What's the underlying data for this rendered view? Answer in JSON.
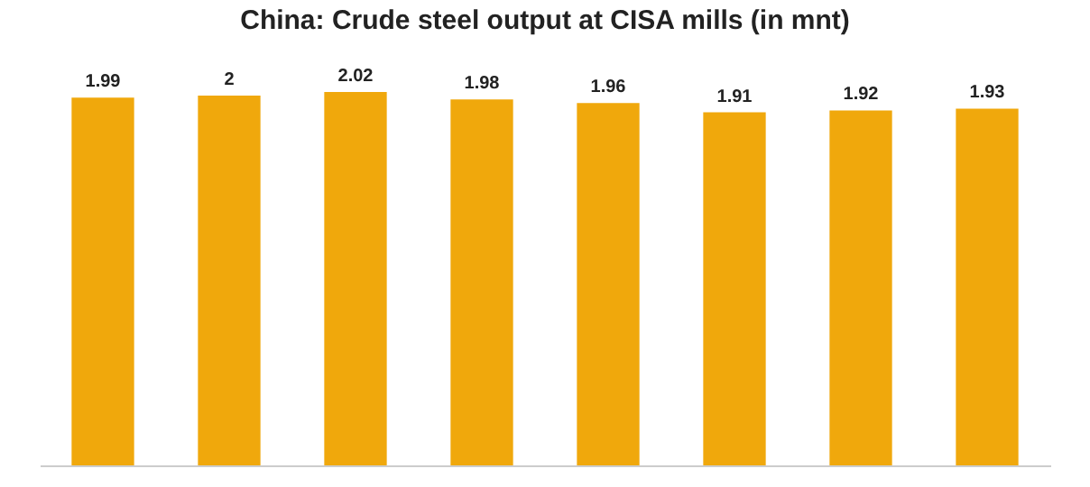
{
  "chart_data": {
    "type": "bar",
    "title": "China: Crude steel output at CISA mills (in mnt)",
    "categories": [
      null,
      null,
      null,
      null,
      null,
      null,
      null,
      null
    ],
    "values": [
      1.99,
      2,
      2.02,
      1.98,
      1.96,
      1.91,
      1.92,
      1.93
    ],
    "color": "#f0a80c",
    "data_labels": true
  }
}
